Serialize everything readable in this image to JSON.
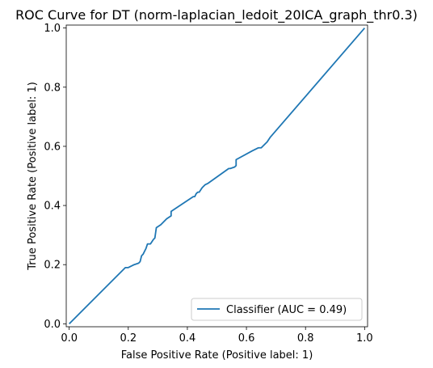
{
  "chart_data": {
    "type": "line",
    "title": "ROC Curve for DT (norm-laplacian_ledoit_20ICA_graph_thr0.3)",
    "xlabel": "False Positive Rate (Positive label: 1)",
    "ylabel": "True Positive Rate (Positive label: 1)",
    "xlim": [
      -0.01,
      1.01
    ],
    "ylim": [
      -0.01,
      1.01
    ],
    "xticks": [
      0.0,
      0.2,
      0.4,
      0.6,
      0.8,
      1.0
    ],
    "yticks": [
      0.0,
      0.2,
      0.4,
      0.6,
      0.8,
      1.0
    ],
    "xtick_labels": [
      "0.0",
      "0.2",
      "0.4",
      "0.6",
      "0.8",
      "1.0"
    ],
    "ytick_labels": [
      "0.0",
      "0.2",
      "0.4",
      "0.6",
      "0.8",
      "1.0"
    ],
    "grid": false,
    "legend_position": "lower-right",
    "line_color": "#1f77b4",
    "series": [
      {
        "name": "Classifier (AUC = 0.49)",
        "x": [
          0.0,
          0.19,
          0.2,
          0.22,
          0.235,
          0.24,
          0.245,
          0.25,
          0.26,
          0.265,
          0.275,
          0.285,
          0.29,
          0.295,
          0.31,
          0.33,
          0.345,
          0.345,
          0.42,
          0.425,
          0.43,
          0.435,
          0.44,
          0.45,
          0.455,
          0.46,
          0.47,
          0.54,
          0.545,
          0.56,
          0.565,
          0.565,
          0.62,
          0.64,
          0.65,
          0.67,
          0.68,
          1.0
        ],
        "y": [
          0.0,
          0.19,
          0.19,
          0.2,
          0.205,
          0.21,
          0.23,
          0.235,
          0.255,
          0.27,
          0.27,
          0.285,
          0.29,
          0.325,
          0.335,
          0.355,
          0.365,
          0.38,
          0.43,
          0.43,
          0.44,
          0.445,
          0.445,
          0.46,
          0.465,
          0.47,
          0.475,
          0.525,
          0.525,
          0.53,
          0.535,
          0.555,
          0.585,
          0.595,
          0.595,
          0.615,
          0.63,
          1.0
        ]
      }
    ]
  }
}
